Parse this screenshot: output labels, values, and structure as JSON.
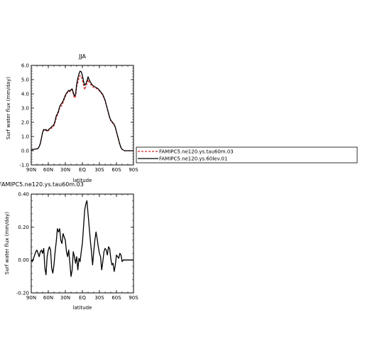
{
  "chart_data": [
    {
      "type": "line",
      "title": "JJA",
      "xlabel": "latitude",
      "ylabel": "Surf water flux (mm/day)",
      "xlim": [
        90,
        -90
      ],
      "ylim": [
        -1.0,
        6.0
      ],
      "xticks": [
        90,
        60,
        30,
        0,
        -30,
        -60,
        -90
      ],
      "xtick_labels": [
        "90N",
        "60N",
        "30N",
        "EQ",
        "30S",
        "60S",
        "90S"
      ],
      "yticks": [
        -1.0,
        0.0,
        1.0,
        2.0,
        3.0,
        4.0,
        5.0,
        6.0
      ],
      "ytick_labels": [
        "-1.0",
        "0.0",
        "1.0",
        "2.0",
        "3.0",
        "4.0",
        "5.0",
        "6.0"
      ],
      "legend_position": "right",
      "series": [
        {
          "name": "FAMIPC5.ne120.ys.tau60m.03",
          "color": "#d62020",
          "dash": "dashed",
          "x": [
            90,
            86,
            82,
            78,
            76,
            74,
            72,
            70,
            68,
            66,
            64,
            62,
            60,
            58,
            56,
            54,
            52,
            50,
            48,
            46,
            44,
            42,
            40,
            38,
            36,
            34,
            32,
            30,
            28,
            26,
            24,
            22,
            20,
            18,
            16,
            14,
            12,
            10,
            8,
            6,
            4,
            2,
            0,
            -2,
            -4,
            -6,
            -8,
            -10,
            -12,
            -14,
            -16,
            -18,
            -20,
            -22,
            -24,
            -26,
            -28,
            -30,
            -32,
            -34,
            -36,
            -38,
            -40,
            -42,
            -44,
            -46,
            -48,
            -50,
            -52,
            -54,
            -56,
            -58,
            -60,
            -62,
            -64,
            -66,
            -68,
            -70,
            -72,
            -74,
            -76,
            -80,
            -85,
            -90
          ],
          "y": [
            0.05,
            0.1,
            0.12,
            0.15,
            0.3,
            0.5,
            0.9,
            1.3,
            1.45,
            1.4,
            1.45,
            1.35,
            1.4,
            1.5,
            1.55,
            1.6,
            1.65,
            1.75,
            2.0,
            2.3,
            2.5,
            2.7,
            3.0,
            3.1,
            3.2,
            3.4,
            3.6,
            3.8,
            4.0,
            4.1,
            4.2,
            4.15,
            4.2,
            4.3,
            4.0,
            3.7,
            3.8,
            4.5,
            4.8,
            5.1,
            5.3,
            5.2,
            5.0,
            4.6,
            4.3,
            4.5,
            4.7,
            5.0,
            4.8,
            4.7,
            4.6,
            4.5,
            4.45,
            4.4,
            4.4,
            4.35,
            4.3,
            4.2,
            4.1,
            4.0,
            3.9,
            3.7,
            3.5,
            3.2,
            2.9,
            2.6,
            2.3,
            2.1,
            2.0,
            1.9,
            1.8,
            1.6,
            1.3,
            1.0,
            0.7,
            0.4,
            0.2,
            0.1,
            0.05,
            0.0,
            0.0,
            0.0,
            0.0,
            0.0
          ]
        },
        {
          "name": "FAMIPC5.ne120.ys.60lev.01",
          "color": "#000000",
          "dash": "solid",
          "x": [
            90,
            86,
            82,
            78,
            76,
            74,
            72,
            70,
            68,
            66,
            64,
            62,
            60,
            58,
            56,
            54,
            52,
            50,
            48,
            46,
            44,
            42,
            40,
            38,
            36,
            34,
            32,
            30,
            28,
            26,
            24,
            22,
            20,
            18,
            16,
            14,
            12,
            10,
            8,
            6,
            4,
            2,
            0,
            -2,
            -4,
            -6,
            -8,
            -10,
            -12,
            -14,
            -16,
            -18,
            -20,
            -22,
            -24,
            -26,
            -28,
            -30,
            -32,
            -34,
            -36,
            -38,
            -40,
            -42,
            -44,
            -46,
            -48,
            -50,
            -52,
            -54,
            -56,
            -58,
            -60,
            -62,
            -64,
            -66,
            -68,
            -70,
            -72,
            -74,
            -76,
            -80,
            -85,
            -90
          ],
          "y": [
            0.05,
            0.1,
            0.12,
            0.15,
            0.3,
            0.5,
            0.9,
            1.3,
            1.5,
            1.45,
            1.5,
            1.4,
            1.45,
            1.55,
            1.6,
            1.7,
            1.75,
            1.85,
            2.1,
            2.45,
            2.6,
            2.8,
            3.1,
            3.25,
            3.35,
            3.5,
            3.7,
            3.9,
            4.05,
            4.15,
            4.25,
            4.2,
            4.3,
            4.35,
            4.1,
            3.85,
            3.95,
            4.7,
            5.1,
            5.4,
            5.6,
            5.55,
            5.3,
            4.9,
            4.6,
            4.7,
            4.9,
            5.2,
            5.0,
            4.85,
            4.7,
            4.6,
            4.55,
            4.5,
            4.45,
            4.4,
            4.35,
            4.25,
            4.15,
            4.05,
            3.95,
            3.75,
            3.55,
            3.25,
            2.95,
            2.65,
            2.35,
            2.15,
            2.05,
            1.95,
            1.85,
            1.65,
            1.35,
            1.05,
            0.75,
            0.45,
            0.22,
            0.1,
            0.05,
            0.0,
            0.0,
            0.0,
            0.0,
            0.0
          ]
        }
      ]
    },
    {
      "type": "line",
      "title": "FAMIPC5.ne120.ys.tau60m.03",
      "xlabel": "latitude",
      "ylabel": "Surf water flux (mm/day)",
      "xlim": [
        90,
        -90
      ],
      "ylim": [
        -0.2,
        0.4
      ],
      "xticks": [
        90,
        60,
        30,
        0,
        -30,
        -60,
        -90
      ],
      "xtick_labels": [
        "90N",
        "60N",
        "30N",
        "EQ",
        "30S",
        "60S",
        "90S"
      ],
      "yticks": [
        -0.2,
        0.0,
        0.2,
        0.4
      ],
      "ytick_labels": [
        "-0.20",
        "0.00",
        "0.20",
        "0.40"
      ],
      "series": [
        {
          "color": "#000000",
          "x": [
            90,
            88,
            86,
            84,
            82,
            80,
            78,
            76,
            74,
            72,
            70,
            68,
            66,
            64,
            62,
            60,
            58,
            56,
            54,
            52,
            50,
            48,
            46,
            44,
            42,
            40,
            38,
            36,
            34,
            32,
            30,
            28,
            26,
            24,
            22,
            20,
            18,
            16,
            14,
            12,
            10,
            8,
            6,
            4,
            2,
            0,
            -2,
            -4,
            -6,
            -8,
            -10,
            -12,
            -14,
            -16,
            -18,
            -20,
            -22,
            -24,
            -26,
            -28,
            -30,
            -32,
            -34,
            -36,
            -38,
            -40,
            -42,
            -44,
            -46,
            -48,
            -50,
            -52,
            -54,
            -56,
            -58,
            -60,
            -62,
            -64,
            -66,
            -68,
            -70,
            -72,
            -75,
            -80,
            -85,
            -90
          ],
          "y": [
            0.0,
            -0.01,
            0.01,
            0.03,
            0.05,
            0.06,
            0.04,
            0.02,
            0.05,
            0.06,
            0.04,
            0.07,
            -0.05,
            -0.09,
            0.02,
            0.06,
            0.08,
            0.06,
            -0.05,
            -0.08,
            -0.03,
            0.05,
            0.11,
            0.19,
            0.17,
            0.19,
            0.12,
            0.1,
            0.16,
            0.14,
            0.12,
            0.05,
            0.02,
            0.06,
            -0.02,
            -0.1,
            -0.06,
            0.05,
            0.02,
            -0.02,
            0.02,
            -0.06,
            0.01,
            -0.01,
            0.05,
            0.1,
            0.2,
            0.3,
            0.34,
            0.36,
            0.28,
            0.2,
            0.12,
            0.05,
            -0.03,
            0.05,
            0.12,
            0.17,
            0.13,
            0.08,
            0.04,
            0.02,
            -0.06,
            -0.01,
            0.05,
            0.07,
            0.06,
            0.03,
            0.08,
            0.07,
            0.01,
            -0.03,
            -0.02,
            -0.07,
            -0.03,
            0.03,
            0.02,
            0.01,
            0.04,
            0.03,
            -0.01,
            0.0,
            0.0,
            0.0,
            0.0,
            0.0
          ]
        }
      ]
    }
  ]
}
